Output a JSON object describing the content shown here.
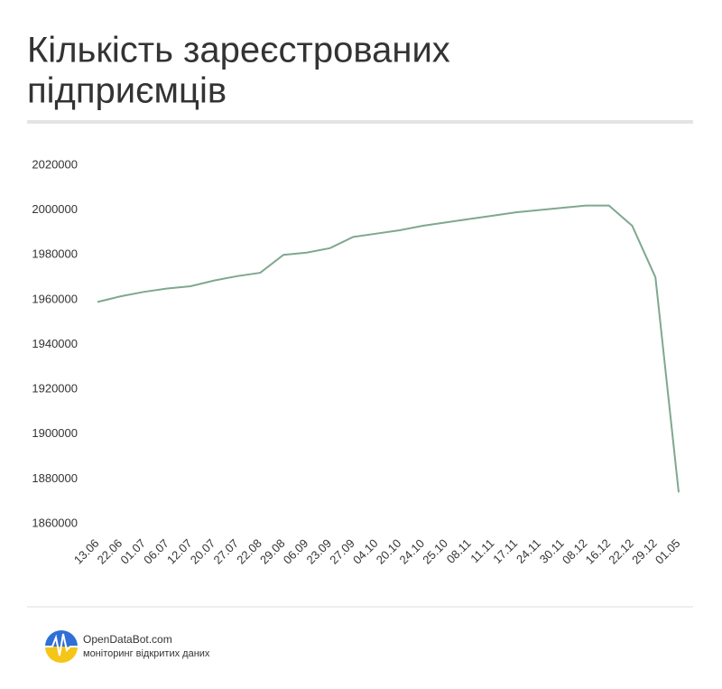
{
  "chart_data": {
    "type": "line",
    "title_lines": [
      "Кількість зареєстрованих",
      "підприємців"
    ],
    "categories": [
      "13.06",
      "22.06",
      "01.07",
      "06.07",
      "12.07",
      "20.07",
      "27.07",
      "22.08",
      "29.08",
      "06.09",
      "23.09",
      "27.09",
      "04.10",
      "20.10",
      "24.10",
      "25.10",
      "08.11",
      "11.11",
      "17.11",
      "24.11",
      "30.11",
      "08.12",
      "16.12",
      "22.12",
      "29.12",
      "01.05"
    ],
    "values": [
      1959000,
      1961500,
      1963500,
      1965000,
      1966000,
      1968500,
      1970500,
      1972000,
      1980000,
      1981000,
      1983000,
      1988000,
      1989500,
      1991000,
      1993000,
      1994500,
      1996000,
      1997500,
      1999000,
      2000000,
      2001000,
      2002000,
      2002000,
      1993000,
      1970000,
      1874000
    ],
    "color": "#7fa88f",
    "ylim": [
      1860000,
      2020000
    ],
    "yticks": [
      1860000,
      1880000,
      1900000,
      1920000,
      1940000,
      1960000,
      1980000,
      2000000,
      2020000
    ],
    "grid": false
  },
  "footer": {
    "brand": "OpenDataBot.com",
    "tagline": "моніторинг відкритих даних"
  }
}
